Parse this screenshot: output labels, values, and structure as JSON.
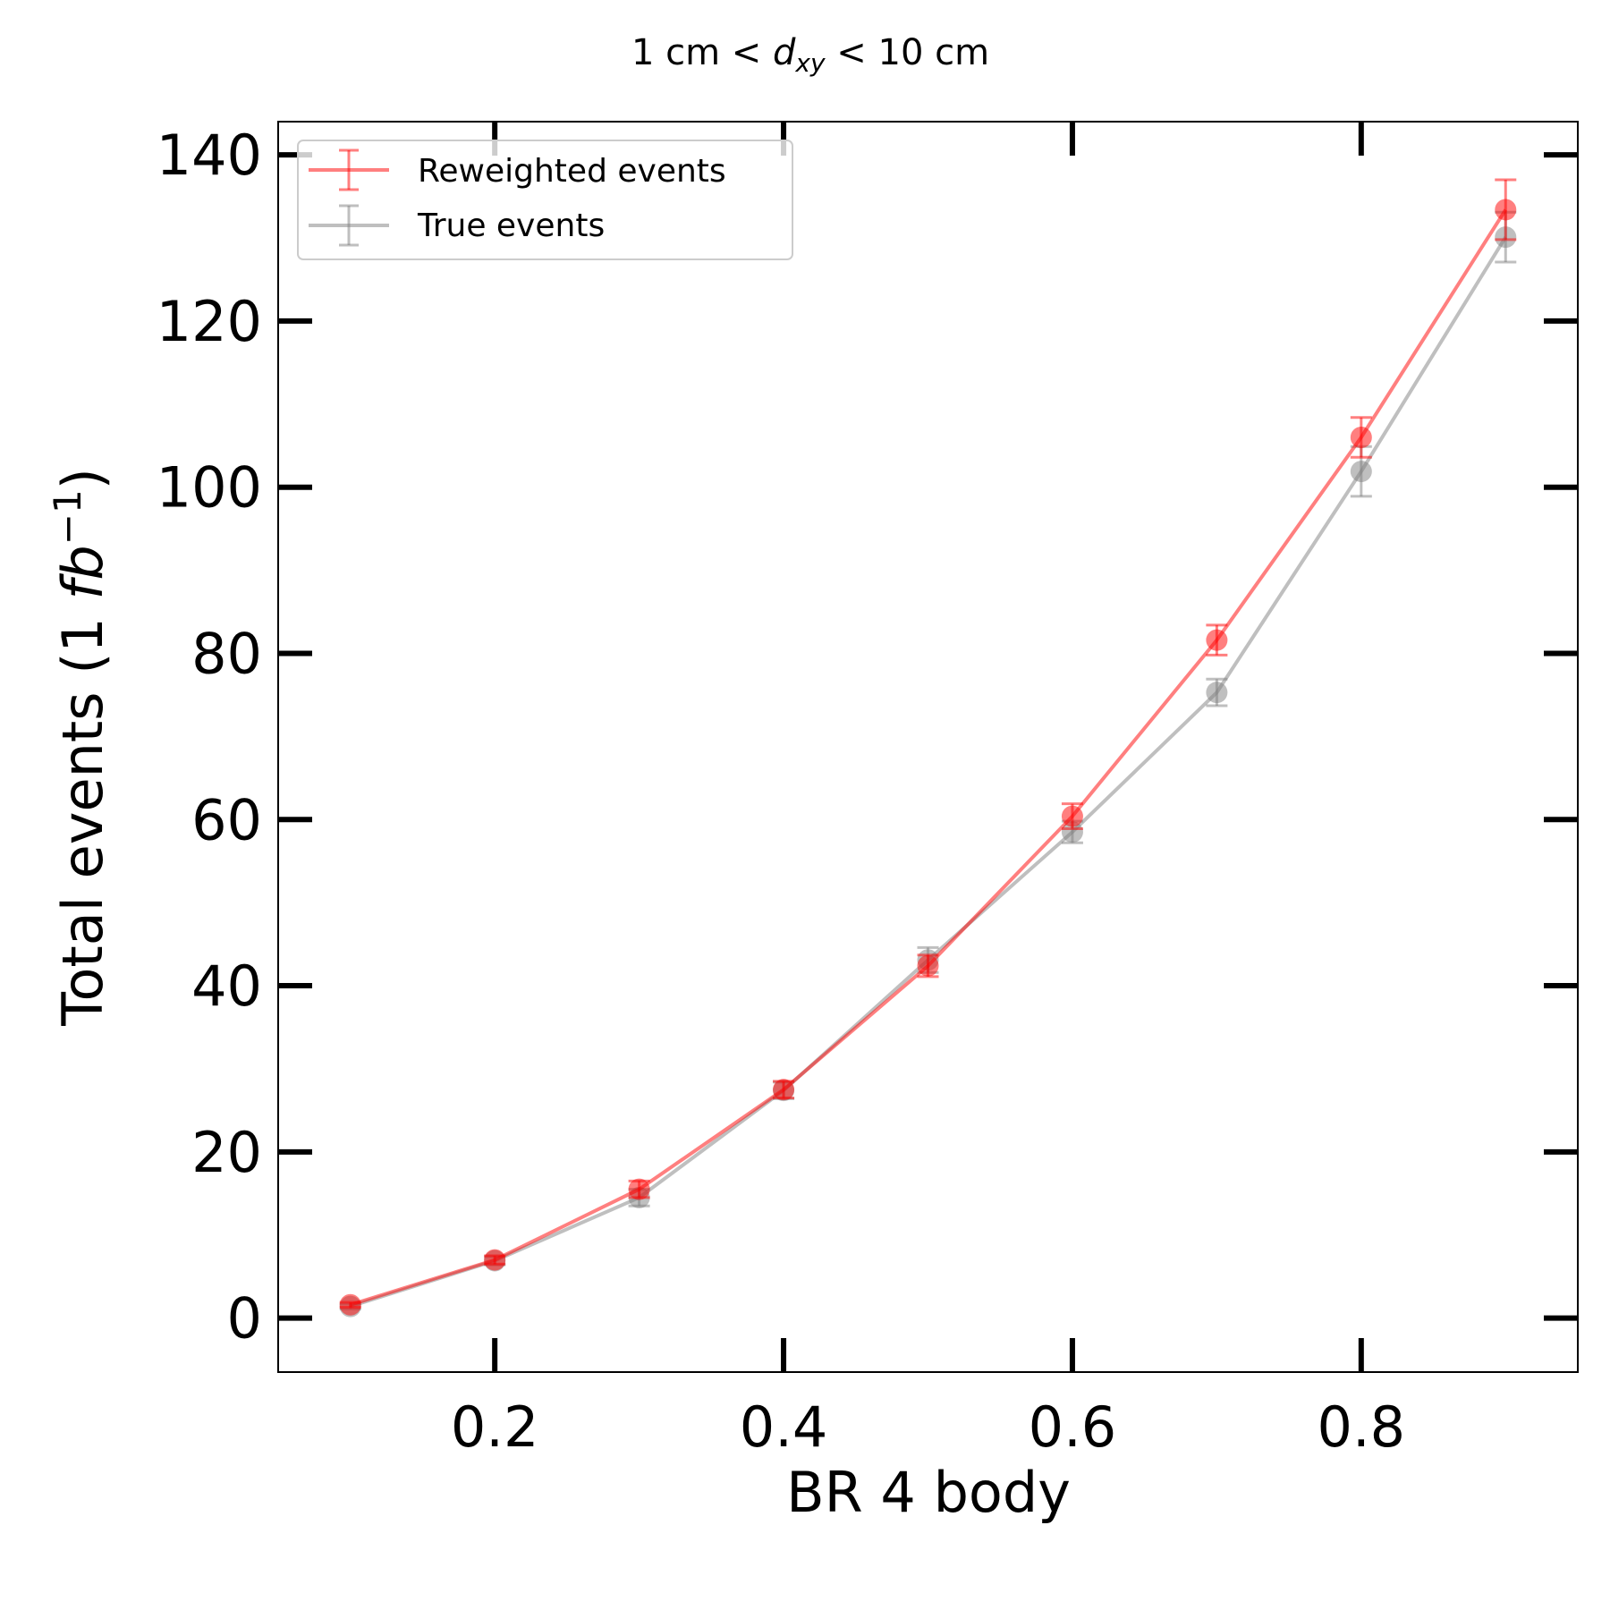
{
  "chart_data": {
    "type": "line",
    "title": {
      "prefix": "1 cm < ",
      "var": "d",
      "sub": "xy",
      "suffix": " < 10 cm"
    },
    "xlabel": "BR 4 body",
    "ylabel": {
      "text": "Total events (1 ",
      "unit": "fb",
      "sup": "−1",
      "close": ")"
    },
    "xlim": [
      0.05,
      0.95
    ],
    "ylim": [
      -6.5,
      144
    ],
    "xticks": [
      0.2,
      0.4,
      0.6,
      0.8
    ],
    "xtick_labels": [
      "0.2",
      "0.4",
      "0.6",
      "0.8"
    ],
    "yticks": [
      0,
      20,
      40,
      60,
      80,
      100,
      120,
      140
    ],
    "ytick_labels": [
      "0",
      "20",
      "40",
      "60",
      "80",
      "100",
      "120",
      "140"
    ],
    "grid": false,
    "legend_position": "top-left",
    "x": [
      0.1,
      0.2,
      0.3,
      0.4,
      0.5,
      0.6,
      0.7,
      0.8,
      0.9
    ],
    "series": [
      {
        "name": "Reweighted events",
        "color": "#ff0000",
        "values": [
          1.6,
          7.0,
          15.5,
          27.5,
          42.4,
          60.4,
          81.6,
          106.0,
          133.4
        ],
        "errors": [
          0.3,
          0.5,
          1.0,
          1.0,
          1.3,
          1.5,
          1.8,
          2.4,
          3.6
        ]
      },
      {
        "name": "True events",
        "color": "#808080",
        "values": [
          1.4,
          6.9,
          14.5,
          27.4,
          43.1,
          58.5,
          75.3,
          101.9,
          130.1
        ],
        "errors": [
          0.3,
          0.5,
          1.0,
          1.0,
          1.5,
          1.3,
          1.6,
          3.0,
          3.0
        ]
      }
    ]
  }
}
